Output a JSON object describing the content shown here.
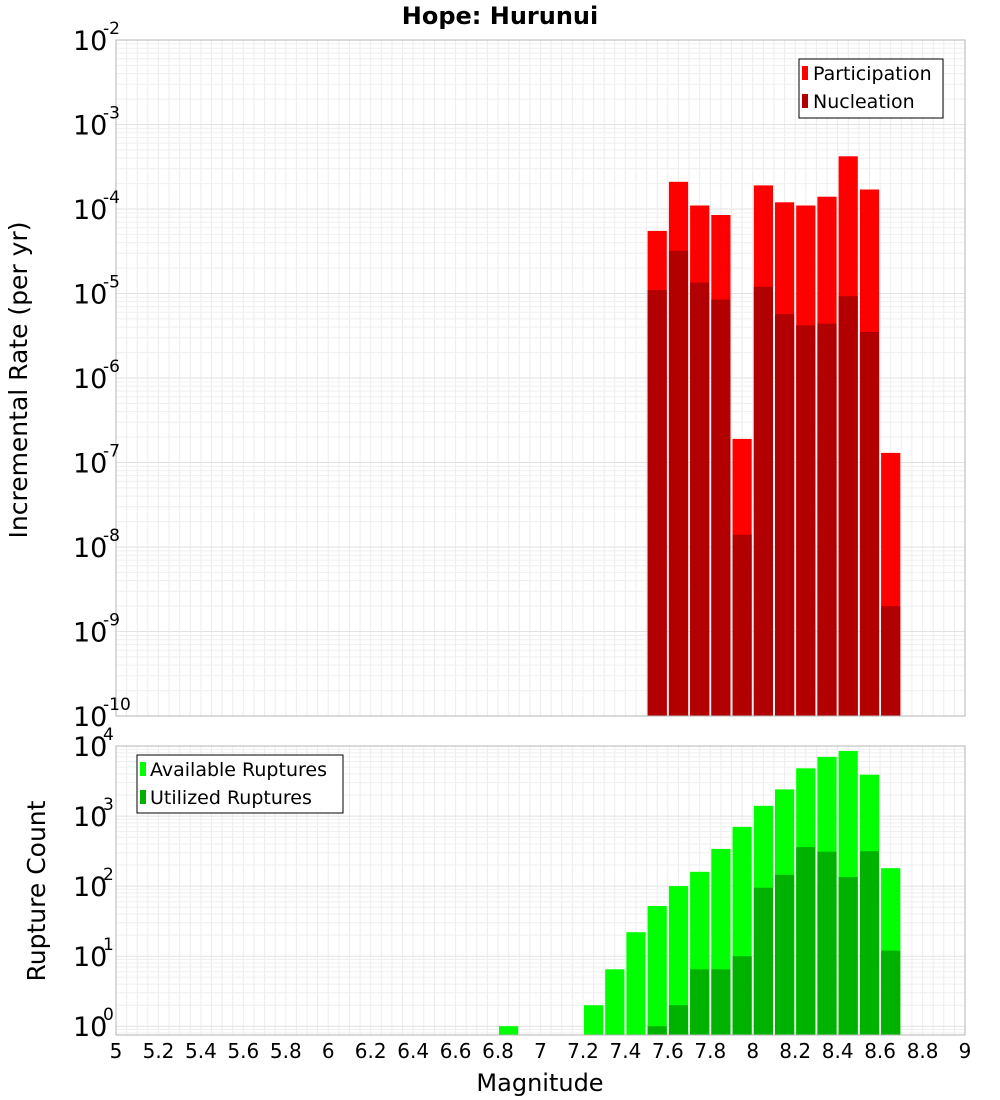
{
  "chart_data": [
    {
      "type": "bar",
      "title": "Hope: Hurunui",
      "xlabel": "",
      "ylabel": "Incremental Rate (per yr)",
      "yscale": "log",
      "ylim": [
        1e-10,
        0.01
      ],
      "xlim": [
        5,
        9
      ],
      "legend_position": "top-right",
      "bin_width": 0.1,
      "x": [
        7.55,
        7.65,
        7.75,
        7.85,
        7.95,
        8.05,
        8.15,
        8.25,
        8.35,
        8.45,
        8.55,
        8.65
      ],
      "series": [
        {
          "name": "Participation",
          "color": "#ff0000",
          "values": [
            5.5e-05,
            0.00021,
            0.00011,
            8.5e-05,
            1.9e-07,
            0.00019,
            0.00012,
            0.00011,
            0.00014,
            0.00042,
            0.00017,
            1.3e-07
          ]
        },
        {
          "name": "Nucleation",
          "color": "#b20000",
          "values": [
            1.1e-05,
            3.2e-05,
            1.35e-05,
            8.5e-06,
            1.4e-08,
            1.2e-05,
            5.7e-06,
            4.2e-06,
            4.4e-06,
            9.3e-06,
            3.5e-06,
            2e-09
          ]
        }
      ],
      "yticks": [
        {
          "base": "10",
          "exp": "-2"
        },
        {
          "base": "10",
          "exp": "-3"
        },
        {
          "base": "10",
          "exp": "-4"
        },
        {
          "base": "10",
          "exp": "-5"
        },
        {
          "base": "10",
          "exp": "-6"
        },
        {
          "base": "10",
          "exp": "-7"
        },
        {
          "base": "10",
          "exp": "-8"
        },
        {
          "base": "10",
          "exp": "-9"
        },
        {
          "base": "10",
          "exp": "-10"
        }
      ]
    },
    {
      "type": "bar",
      "title": "",
      "xlabel": "Magnitude",
      "ylabel": "Rupture Count",
      "yscale": "log",
      "ylim": [
        0.75,
        10000
      ],
      "xlim": [
        5,
        9
      ],
      "legend_position": "top-left",
      "bin_width": 0.1,
      "x": [
        6.85,
        7.25,
        7.35,
        7.45,
        7.55,
        7.65,
        7.75,
        7.85,
        7.95,
        8.05,
        8.15,
        8.25,
        8.35,
        8.45,
        8.55,
        8.65
      ],
      "series": [
        {
          "name": "Available Ruptures",
          "color": "#00ff00",
          "values": [
            1,
            2,
            6.5,
            22,
            52,
            100,
            160,
            340,
            700,
            1400,
            2400,
            4800,
            7000,
            8500,
            3900,
            180
          ]
        },
        {
          "name": "Utilized Ruptures",
          "color": "#00b200",
          "values": [
            0,
            0,
            0,
            0,
            1,
            2,
            6.5,
            6.5,
            10,
            95,
            145,
            360,
            310,
            135,
            315,
            12
          ]
        }
      ],
      "yticks": [
        {
          "base": "10",
          "exp": "4"
        },
        {
          "base": "10",
          "exp": "3"
        },
        {
          "base": "10",
          "exp": "2"
        },
        {
          "base": "10",
          "exp": "1"
        },
        {
          "base": "10",
          "exp": "0"
        }
      ],
      "xticks": [
        "5",
        "5.2",
        "5.4",
        "5.6",
        "5.8",
        "6",
        "6.2",
        "6.4",
        "6.6",
        "6.8",
        "7",
        "7.2",
        "7.4",
        "7.6",
        "7.8",
        "8",
        "8.2",
        "8.4",
        "8.6",
        "8.8",
        "9"
      ]
    }
  ]
}
